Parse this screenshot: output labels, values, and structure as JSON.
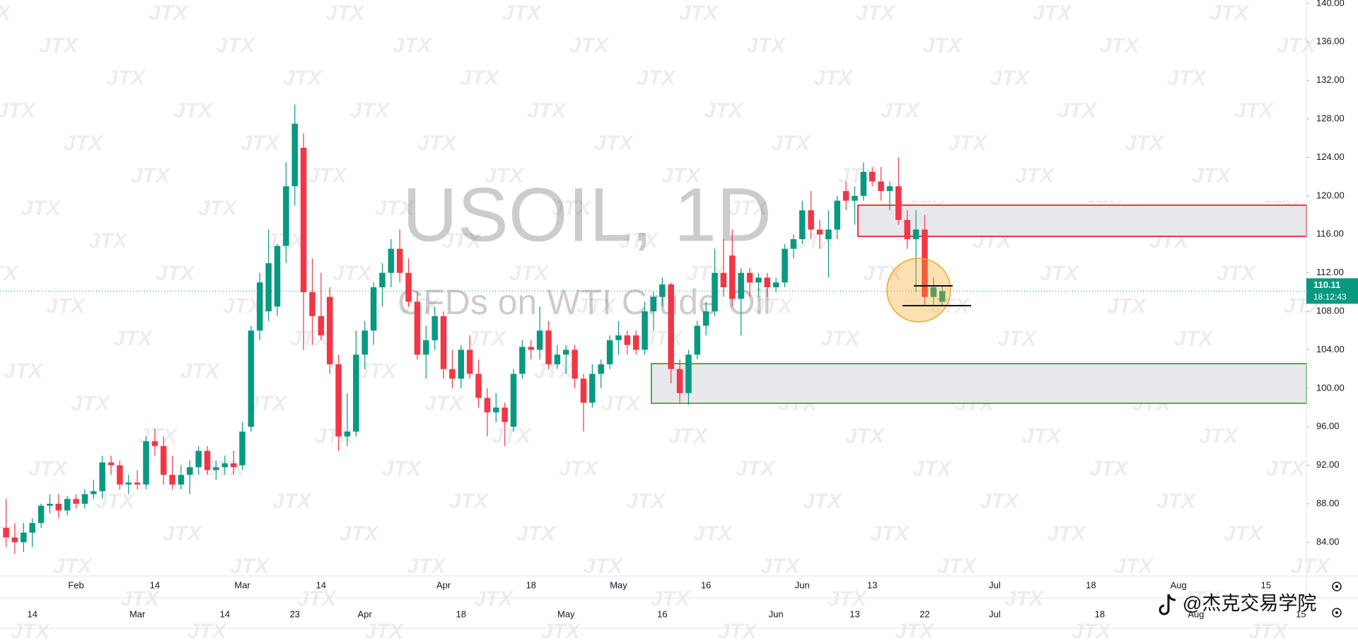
{
  "chart_data": {
    "type": "candlestick",
    "title": "USOIL, 1D",
    "subtitle": "CFDs on WTI Crude Oil",
    "watermark": "JTX",
    "credit": "@杰克交易学院",
    "up_color": "#089981",
    "down_color": "#f23645",
    "ylim": [
      80.5,
      140.36
    ],
    "yticks": [
      {
        "value": 84,
        "label": "84.00"
      },
      {
        "value": 88,
        "label": "88.00"
      },
      {
        "value": 92,
        "label": "92.00"
      },
      {
        "value": 96,
        "label": "96.00"
      },
      {
        "value": 100,
        "label": "100.00"
      },
      {
        "value": 104,
        "label": "104.00"
      },
      {
        "value": 108,
        "label": "108.00"
      },
      {
        "value": 112,
        "label": "112.00"
      },
      {
        "value": 116,
        "label": "116.00"
      },
      {
        "value": 120,
        "label": "120.00"
      },
      {
        "value": 124,
        "label": "124.00"
      },
      {
        "value": 128,
        "label": "128.00"
      },
      {
        "value": 132,
        "label": "132.00"
      },
      {
        "value": 136,
        "label": "136.00"
      },
      {
        "value": 140,
        "label": "140.00"
      }
    ],
    "last_price": 110.11,
    "countdown": "18:12:43",
    "categories": [
      null,
      null,
      null,
      null,
      null,
      null,
      null,
      null,
      "Feb",
      null,
      null,
      null,
      null,
      null,
      null,
      null,
      null,
      "14",
      null,
      null,
      null,
      null,
      null,
      null,
      null,
      null,
      null,
      "Mar",
      null,
      null,
      null,
      null,
      null,
      null,
      null,
      null,
      "14",
      null,
      null,
      null,
      null,
      null,
      null,
      null,
      null,
      null,
      null,
      null,
      null,
      null,
      "Apr",
      null,
      null,
      null,
      null,
      null,
      null,
      null,
      null,
      null,
      "18",
      null,
      null,
      null,
      null,
      null,
      null,
      null,
      null,
      null,
      "May",
      null,
      null,
      null,
      null,
      null,
      null,
      null,
      null,
      null,
      "16",
      null,
      null,
      null,
      null,
      null,
      null,
      null,
      null,
      null,
      null,
      "Jun",
      null,
      null,
      null,
      null,
      null,
      null,
      null,
      "13",
      null,
      null,
      null,
      null,
      null,
      null,
      null,
      null,
      null,
      null,
      null,
      null,
      null,
      "Jul",
      null,
      null,
      null,
      null,
      null,
      null,
      null,
      null,
      null,
      null,
      "18",
      null,
      null,
      null,
      null,
      null,
      null,
      null,
      null,
      null,
      "Aug",
      null,
      null,
      null,
      null,
      null,
      null,
      null,
      null,
      null,
      "15",
      null,
      null,
      null,
      null,
      null
    ],
    "categories_2": [
      null,
      null,
      null,
      "14",
      null,
      null,
      null,
      null,
      null,
      null,
      null,
      null,
      null,
      null,
      null,
      "Mar",
      null,
      null,
      null,
      null,
      null,
      null,
      null,
      null,
      null,
      "14",
      null,
      null,
      null,
      null,
      null,
      null,
      null,
      "23",
      null,
      null,
      null,
      null,
      null,
      null,
      null,
      "Apr",
      null,
      null,
      null,
      null,
      null,
      null,
      null,
      null,
      null,
      null,
      "18",
      null,
      null,
      null,
      null,
      null,
      null,
      null,
      null,
      null,
      null,
      null,
      "May",
      null,
      null,
      null,
      null,
      null,
      null,
      null,
      null,
      null,
      null,
      "16",
      null,
      null,
      null,
      null,
      null,
      null,
      null,
      null,
      null,
      null,
      null,
      null,
      "Jun",
      null,
      null,
      null,
      null,
      null,
      null,
      null,
      null,
      "13",
      null,
      null,
      null,
      null,
      null,
      null,
      null,
      "22",
      null,
      null,
      null,
      null,
      null,
      null,
      null,
      "Jul",
      null,
      null,
      null,
      null,
      null,
      null,
      null,
      null,
      null,
      null,
      null,
      "18",
      null,
      null,
      null,
      null,
      null,
      null,
      null,
      null,
      null,
      null,
      "Aug",
      null,
      null,
      null,
      null,
      null,
      null,
      null,
      null,
      null,
      null,
      null,
      "15",
      null
    ],
    "ohlc": [
      [
        85.5,
        88.5,
        83.5,
        84.5
      ],
      [
        84.5,
        86,
        82.8,
        84
      ],
      [
        84,
        86,
        83,
        85
      ],
      [
        85,
        86.5,
        83.5,
        86
      ],
      [
        86,
        88,
        85.5,
        87.8
      ],
      [
        87.8,
        89,
        87,
        88
      ],
      [
        88,
        89,
        86.5,
        87.3
      ],
      [
        87.3,
        88.8,
        86.8,
        88.5
      ],
      [
        88.5,
        89,
        87.5,
        88
      ],
      [
        88,
        89.5,
        87.5,
        89
      ],
      [
        89,
        90.5,
        88.5,
        89.3
      ],
      [
        89.3,
        93,
        88.5,
        92.3
      ],
      [
        92.3,
        93,
        91,
        92
      ],
      [
        92,
        92.5,
        89.5,
        90
      ],
      [
        90,
        91,
        89,
        90.2
      ],
      [
        90.2,
        91.5,
        89.5,
        90
      ],
      [
        90,
        95,
        89.5,
        94.5
      ],
      [
        94.5,
        95.8,
        93,
        94
      ],
      [
        94,
        95,
        90,
        91
      ],
      [
        91,
        93,
        89.5,
        90
      ],
      [
        90,
        92,
        89.5,
        91
      ],
      [
        91,
        92.5,
        89,
        91.8
      ],
      [
        91.8,
        94,
        91,
        93.5
      ],
      [
        93.5,
        94,
        91,
        91.5
      ],
      [
        91.5,
        92.5,
        90.5,
        91.8
      ],
      [
        91.8,
        93,
        91,
        92.2
      ],
      [
        92.2,
        93.5,
        91,
        91.8
      ],
      [
        92,
        96.5,
        91.5,
        95.5
      ],
      [
        96,
        106.5,
        95.5,
        106
      ],
      [
        106,
        112,
        105,
        111
      ],
      [
        108,
        116.5,
        107,
        113
      ],
      [
        108.5,
        115,
        107.5,
        114.8
      ],
      [
        114.8,
        123.5,
        113,
        121
      ],
      [
        121,
        129.5,
        119,
        127.5
      ],
      [
        125,
        126.5,
        104,
        110
      ],
      [
        110,
        113.5,
        104.5,
        107.5
      ],
      [
        107.5,
        112,
        105,
        105.5
      ],
      [
        109.5,
        110.5,
        101.5,
        102.5
      ],
      [
        102.5,
        103.5,
        93.5,
        95
      ],
      [
        95,
        99.5,
        94,
        95.5
      ],
      [
        95.5,
        106,
        95,
        103.5
      ],
      [
        103.5,
        107,
        102,
        106
      ],
      [
        106,
        111,
        104.5,
        110.5
      ],
      [
        110.5,
        113,
        108.5,
        112
      ],
      [
        112,
        115.5,
        110.5,
        114.5
      ],
      [
        114.5,
        116.5,
        111,
        112
      ],
      [
        112,
        113.5,
        108.5,
        109
      ],
      [
        109,
        110,
        103,
        103.5
      ],
      [
        103.5,
        106.5,
        101,
        105
      ],
      [
        105,
        108.5,
        104,
        107.5
      ],
      [
        107.5,
        108,
        101,
        102
      ],
      [
        102,
        104,
        100,
        101
      ],
      [
        101,
        104.5,
        100,
        104
      ],
      [
        104,
        105.5,
        101,
        101.5
      ],
      [
        101.5,
        103,
        98,
        99
      ],
      [
        99,
        100,
        95,
        97.5
      ],
      [
        97.5,
        99.5,
        96.5,
        98
      ],
      [
        98,
        98.5,
        94,
        96.5
      ],
      [
        96,
        102,
        95.5,
        101.5
      ],
      [
        101.5,
        105,
        101,
        104.3
      ],
      [
        104.3,
        105,
        103,
        104
      ],
      [
        104,
        108.5,
        103,
        106
      ],
      [
        106,
        107,
        102,
        102.5
      ],
      [
        102.5,
        104.5,
        102,
        103.5
      ],
      [
        103.5,
        104.5,
        101.5,
        104
      ],
      [
        104,
        104.5,
        100,
        101
      ],
      [
        101,
        101.5,
        95.5,
        98.5
      ],
      [
        98.5,
        102.5,
        98,
        101.5
      ],
      [
        101.5,
        103,
        100,
        102.5
      ],
      [
        102.5,
        105.5,
        102,
        105
      ],
      [
        105,
        107,
        103.5,
        105.5
      ],
      [
        105.5,
        106,
        103.5,
        104.5
      ],
      [
        105.5,
        106,
        103.5,
        104
      ],
      [
        104,
        109,
        103.5,
        108
      ],
      [
        108,
        110,
        106,
        109.5
      ],
      [
        109.5,
        111.5,
        108.5,
        110.8
      ],
      [
        110.8,
        111,
        100.5,
        102
      ],
      [
        102,
        103,
        98.5,
        99.5
      ],
      [
        99.5,
        104,
        98.3,
        103.5
      ],
      [
        103.5,
        107,
        103,
        106.5
      ],
      [
        106.5,
        109,
        105.5,
        108
      ],
      [
        108,
        114.5,
        107.5,
        112
      ],
      [
        112,
        115.5,
        109.5,
        110.5
      ],
      [
        113.8,
        116.5,
        108.5,
        109.3
      ],
      [
        109.3,
        112.5,
        105.5,
        112
      ],
      [
        112,
        112.5,
        109.5,
        111
      ],
      [
        111,
        112,
        109.5,
        111.5
      ],
      [
        111.5,
        112,
        109.5,
        110.5
      ],
      [
        110.5,
        111.5,
        110,
        111
      ],
      [
        111,
        115,
        110.5,
        114.5
      ],
      [
        114.5,
        116,
        113.5,
        115.5
      ],
      [
        115.5,
        119.5,
        115,
        118.5
      ],
      [
        118.5,
        120.5,
        115.5,
        116.5
      ],
      [
        116.5,
        117.5,
        114.5,
        116
      ],
      [
        115.5,
        118.5,
        111.5,
        116.5
      ],
      [
        116.5,
        120,
        115.5,
        119.5
      ],
      [
        120.5,
        121.5,
        118.5,
        119.5
      ],
      [
        119.5,
        121,
        117,
        120
      ],
      [
        120,
        123.5,
        119.5,
        122.5
      ],
      [
        122.5,
        123,
        121,
        121.5
      ],
      [
        121.5,
        123,
        119.5,
        120.5
      ],
      [
        120.5,
        121.5,
        118.5,
        121
      ],
      [
        121,
        124,
        117,
        117.5
      ],
      [
        117.5,
        118.5,
        114.5,
        115.5
      ],
      [
        115.5,
        118.5,
        110,
        116.5
      ],
      [
        116.5,
        118,
        108.5,
        109.5
      ],
      [
        109.5,
        111.5,
        108.5,
        110.5
      ],
      [
        109,
        110.7,
        108.5,
        110.11
      ],
      null,
      null,
      null,
      null,
      null,
      null,
      null,
      null,
      null,
      null,
      null,
      null,
      null,
      null,
      null,
      null,
      null,
      null,
      null,
      null,
      null,
      null,
      null,
      null,
      null,
      null,
      null,
      null,
      null,
      null,
      null,
      null,
      null,
      null,
      null,
      null,
      null,
      null,
      null,
      null,
      null,
      null
    ]
  }
}
